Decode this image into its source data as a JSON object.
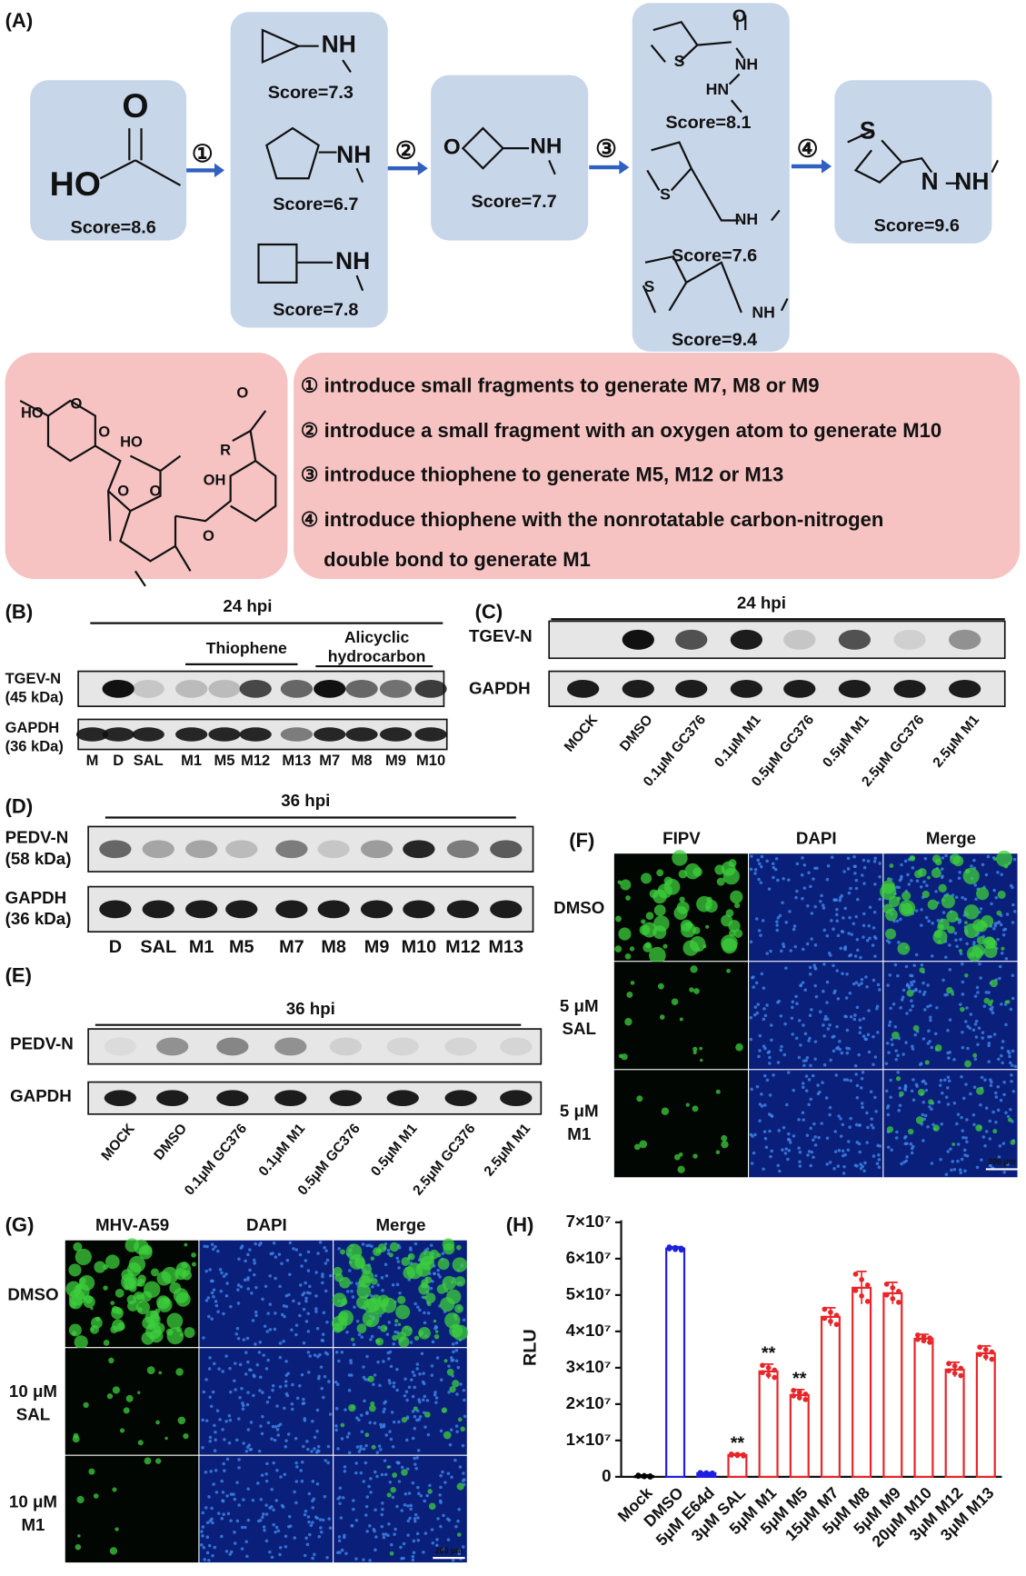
{
  "panel_labels": [
    "(A)",
    "(B)",
    "(C)",
    "(D)",
    "(E)",
    "(F)",
    "(G)",
    "(H)"
  ],
  "scheme": {
    "steps": [
      "①",
      "②",
      "③",
      "④"
    ],
    "fragments": [
      {
        "atoms": [
          "O",
          "HO"
        ],
        "scores": [
          "Score=8.6"
        ]
      },
      {
        "atoms": [
          "NH",
          "NH",
          "NH"
        ],
        "scores": [
          "Score=7.3",
          "Score=6.7",
          "Score=7.8"
        ]
      },
      {
        "atoms": [
          "O",
          "NH"
        ],
        "scores": [
          "Score=7.7"
        ]
      },
      {
        "atoms": [
          "O",
          "S",
          "NH",
          "HN",
          "S",
          "NH",
          "S",
          "NH"
        ],
        "scores": [
          "Score=8.1",
          "Score=7.6",
          "Score=9.4"
        ]
      },
      {
        "atoms": [
          "S",
          "N",
          "NH"
        ],
        "scores": [
          "Score=9.6"
        ]
      }
    ]
  },
  "salinomycin": {
    "atoms": [
      "HO",
      "O",
      "HO",
      "O",
      "O",
      "O",
      "R",
      "O",
      "OH",
      "O"
    ]
  },
  "strategy": [
    "① introduce small fragments to generate M7, M8 or M9",
    "② introduce a small fragment with an oxygen atom to generate M10",
    "③ introduce thiophene to generate M5, M12 or M13",
    "④ introduce thiophene with the nonrotatable carbon-nitrogen",
    "double bond to generate M1"
  ],
  "panel_b": {
    "title": "24 hpi",
    "groups": [
      [
        "Thiophene"
      ],
      [
        "Alicyclic",
        "hydrocarbon"
      ]
    ],
    "rows": [
      [
        "TGEV-N",
        "(45 kDa)"
      ],
      [
        "GAPDH",
        "(36 kDa)"
      ]
    ],
    "lanes": [
      "M",
      "D",
      "SAL",
      "M1",
      "M5",
      "M12",
      "M13",
      "M7",
      "M8",
      "M9",
      "M10"
    ]
  },
  "panel_c": {
    "title": "24 hpi",
    "rows": [
      "TGEV-N",
      "GAPDH"
    ],
    "lanes": [
      "MOCK",
      "DMSO",
      "0.1μM GC376",
      "0.1μM M1",
      "0.5μM GC376",
      "0.5μM M1",
      "2.5μM GC376",
      "2.5μM M1"
    ]
  },
  "panel_d": {
    "title": "36 hpi",
    "rows": [
      [
        "PEDV-N",
        "(58 kDa)"
      ],
      [
        "GAPDH",
        "(36 kDa)"
      ]
    ],
    "lanes": [
      "D",
      "SAL",
      "M1",
      "M5",
      "M7",
      "M8",
      "M9",
      "M10",
      "M12",
      "M13"
    ]
  },
  "panel_e": {
    "title": "36 hpi",
    "rows": [
      "PEDV-N",
      "GAPDH"
    ],
    "lanes": [
      "MOCK",
      "DMSO",
      "0.1μM GC376",
      "0.1μM M1",
      "0.5μM GC376",
      "0.5μM M1",
      "2.5μM GC376",
      "2.5μM M1"
    ]
  },
  "panel_f": {
    "columns": [
      "FIPV",
      "DAPI",
      "Merge"
    ],
    "rows": [
      [
        "DMSO"
      ],
      [
        "5 μM",
        "SAL"
      ],
      [
        "5 μM",
        "M1"
      ]
    ],
    "scale_bar": "200 μm"
  },
  "panel_g": {
    "columns": [
      "MHV-A59",
      "DAPI",
      "Merge"
    ],
    "rows": [
      [
        "DMSO"
      ],
      [
        "10 μM",
        "SAL"
      ],
      [
        "10 μM",
        "M1"
      ]
    ],
    "scale_bar": "200 μm"
  },
  "chart_data": {
    "type": "bar",
    "ylabel": "RLU",
    "categories": [
      "Mock",
      "DMSO",
      "5μM E64d",
      "3μM SAL",
      "5μM M1",
      "5μM M5",
      "15μM M7",
      "5μM M8",
      "5μM M9",
      "20μM M10",
      "3μM M12",
      "3μM M13"
    ],
    "values": [
      200000,
      62800000,
      1000000,
      6000000,
      29000000,
      22500000,
      44000000,
      52000000,
      50500000,
      38000000,
      29500000,
      34000000
    ],
    "errors": [
      300000,
      500000,
      200000,
      300000,
      2000000,
      1500000,
      2500000,
      4500000,
      3000000,
      1200000,
      2000000,
      2000000
    ],
    "significance": [
      null,
      null,
      null,
      "**",
      "**",
      "**",
      null,
      null,
      null,
      null,
      null,
      null
    ],
    "colors": [
      "#000000",
      "#1f1fe0",
      "#1f1fe0",
      "#e8262a",
      "#e8262a",
      "#e8262a",
      "#e8262a",
      "#e8262a",
      "#e8262a",
      "#e8262a",
      "#e8262a",
      "#e8262a"
    ],
    "ylim": [
      0,
      70000000
    ],
    "yticks": [
      0,
      {
        "value": 10000000,
        "label": "1×10⁷"
      },
      {
        "value": 20000000,
        "label": "2×10⁷"
      },
      {
        "value": 30000000,
        "label": "3×10⁷"
      },
      {
        "value": 40000000,
        "label": "4×10⁷"
      },
      {
        "value": 50000000,
        "label": "5×10⁷"
      },
      {
        "value": 60000000,
        "label": "6×10⁷"
      },
      {
        "value": 70000000,
        "label": "7×10⁷"
      }
    ]
  }
}
